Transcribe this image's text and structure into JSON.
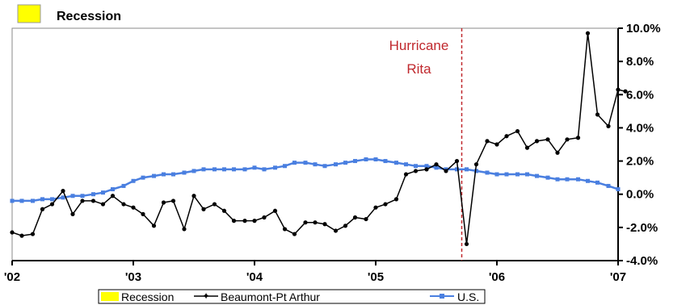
{
  "chart_data": {
    "type": "line",
    "y_unit": "%",
    "ylim": [
      -4.0,
      10.0
    ],
    "y_ticks": [
      "10.0%",
      "8.0%",
      "6.0%",
      "4.0%",
      "2.0%",
      "0.0%",
      "-2.0%",
      "-4.0%"
    ],
    "x_ticks": [
      {
        "label": "'02",
        "x": 2002.0
      },
      {
        "label": "'03",
        "x": 2003.0
      },
      {
        "label": "'04",
        "x": 2004.0
      },
      {
        "label": "'05",
        "x": 2005.0
      },
      {
        "label": "'06",
        "x": 2006.0
      },
      {
        "label": "'07",
        "x": 2007.0
      }
    ],
    "xlim": [
      2002.0,
      2007.0
    ],
    "grid": false,
    "legend_position": "bottom",
    "top_legend_label": "Recession",
    "legend": [
      {
        "label": "Recession",
        "color": "#ffff00",
        "kind": "box"
      },
      {
        "label": "Beaumont-Pt Arthur",
        "color": "#000000",
        "kind": "line-marker"
      },
      {
        "label": "U.S.",
        "color": "#4a7fe0",
        "kind": "line-marker"
      }
    ],
    "annotation": {
      "lines": [
        "Hurricane",
        "Rita"
      ],
      "x": 2005.71,
      "color": "#c0282d"
    },
    "series": [
      {
        "name": "Beaumont-Pt Arthur",
        "color": "#000000",
        "points": [
          [
            2002.0,
            -2.3
          ],
          [
            2002.08,
            -2.5
          ],
          [
            2002.17,
            -2.4
          ],
          [
            2002.25,
            -0.9
          ],
          [
            2002.33,
            -0.6
          ],
          [
            2002.42,
            0.2
          ],
          [
            2002.5,
            -1.2
          ],
          [
            2002.58,
            -0.4
          ],
          [
            2002.67,
            -0.4
          ],
          [
            2002.75,
            -0.6
          ],
          [
            2002.83,
            -0.1
          ],
          [
            2002.92,
            -0.6
          ],
          [
            2003.0,
            -0.8
          ],
          [
            2003.08,
            -1.2
          ],
          [
            2003.17,
            -1.9
          ],
          [
            2003.25,
            -0.5
          ],
          [
            2003.33,
            -0.4
          ],
          [
            2003.42,
            -2.1
          ],
          [
            2003.5,
            -0.1
          ],
          [
            2003.58,
            -0.9
          ],
          [
            2003.67,
            -0.6
          ],
          [
            2003.75,
            -1.0
          ],
          [
            2003.83,
            -1.6
          ],
          [
            2003.92,
            -1.6
          ],
          [
            2004.0,
            -1.6
          ],
          [
            2004.08,
            -1.4
          ],
          [
            2004.17,
            -1.0
          ],
          [
            2004.25,
            -2.1
          ],
          [
            2004.33,
            -2.4
          ],
          [
            2004.42,
            -1.7
          ],
          [
            2004.5,
            -1.7
          ],
          [
            2004.58,
            -1.8
          ],
          [
            2004.67,
            -2.2
          ],
          [
            2004.75,
            -1.9
          ],
          [
            2004.83,
            -1.4
          ],
          [
            2004.92,
            -1.5
          ],
          [
            2005.0,
            -0.8
          ],
          [
            2005.08,
            -0.6
          ],
          [
            2005.17,
            -0.3
          ],
          [
            2005.25,
            1.2
          ],
          [
            2005.33,
            1.4
          ],
          [
            2005.42,
            1.5
          ],
          [
            2005.5,
            1.8
          ],
          [
            2005.58,
            1.4
          ],
          [
            2005.67,
            2.0
          ],
          [
            2005.75,
            -3.0
          ],
          [
            2005.83,
            1.8
          ],
          [
            2005.92,
            3.2
          ],
          [
            2006.0,
            3.0
          ],
          [
            2006.08,
            3.5
          ],
          [
            2006.17,
            3.8
          ],
          [
            2006.25,
            2.8
          ],
          [
            2006.33,
            3.2
          ],
          [
            2006.42,
            3.3
          ],
          [
            2006.5,
            2.5
          ],
          [
            2006.58,
            3.3
          ],
          [
            2006.67,
            3.4
          ],
          [
            2006.75,
            9.7
          ],
          [
            2006.83,
            4.8
          ],
          [
            2006.92,
            4.1
          ],
          [
            2007.0,
            6.3
          ],
          [
            2007.06,
            6.2
          ]
        ]
      },
      {
        "name": "U.S.",
        "color": "#4a7fe0",
        "points": [
          [
            2002.0,
            -0.4
          ],
          [
            2002.08,
            -0.4
          ],
          [
            2002.17,
            -0.4
          ],
          [
            2002.25,
            -0.3
          ],
          [
            2002.33,
            -0.3
          ],
          [
            2002.42,
            -0.2
          ],
          [
            2002.5,
            -0.1
          ],
          [
            2002.58,
            -0.1
          ],
          [
            2002.67,
            0.0
          ],
          [
            2002.75,
            0.1
          ],
          [
            2002.83,
            0.3
          ],
          [
            2002.92,
            0.5
          ],
          [
            2003.0,
            0.8
          ],
          [
            2003.08,
            1.0
          ],
          [
            2003.17,
            1.1
          ],
          [
            2003.25,
            1.2
          ],
          [
            2003.33,
            1.2
          ],
          [
            2003.42,
            1.3
          ],
          [
            2003.5,
            1.4
          ],
          [
            2003.58,
            1.5
          ],
          [
            2003.67,
            1.5
          ],
          [
            2003.75,
            1.5
          ],
          [
            2003.83,
            1.5
          ],
          [
            2003.92,
            1.5
          ],
          [
            2004.0,
            1.6
          ],
          [
            2004.08,
            1.5
          ],
          [
            2004.17,
            1.6
          ],
          [
            2004.25,
            1.7
          ],
          [
            2004.33,
            1.9
          ],
          [
            2004.42,
            1.9
          ],
          [
            2004.5,
            1.8
          ],
          [
            2004.58,
            1.7
          ],
          [
            2004.67,
            1.8
          ],
          [
            2004.75,
            1.9
          ],
          [
            2004.83,
            2.0
          ],
          [
            2004.92,
            2.1
          ],
          [
            2005.0,
            2.1
          ],
          [
            2005.08,
            2.0
          ],
          [
            2005.17,
            1.9
          ],
          [
            2005.25,
            1.8
          ],
          [
            2005.33,
            1.7
          ],
          [
            2005.42,
            1.7
          ],
          [
            2005.5,
            1.6
          ],
          [
            2005.58,
            1.5
          ],
          [
            2005.67,
            1.5
          ],
          [
            2005.75,
            1.5
          ],
          [
            2005.83,
            1.4
          ],
          [
            2005.92,
            1.3
          ],
          [
            2006.0,
            1.2
          ],
          [
            2006.08,
            1.2
          ],
          [
            2006.17,
            1.2
          ],
          [
            2006.25,
            1.2
          ],
          [
            2006.33,
            1.1
          ],
          [
            2006.42,
            1.0
          ],
          [
            2006.5,
            0.9
          ],
          [
            2006.58,
            0.9
          ],
          [
            2006.67,
            0.9
          ],
          [
            2006.75,
            0.8
          ],
          [
            2006.83,
            0.7
          ],
          [
            2006.92,
            0.5
          ],
          [
            2007.0,
            0.3
          ]
        ]
      }
    ]
  }
}
